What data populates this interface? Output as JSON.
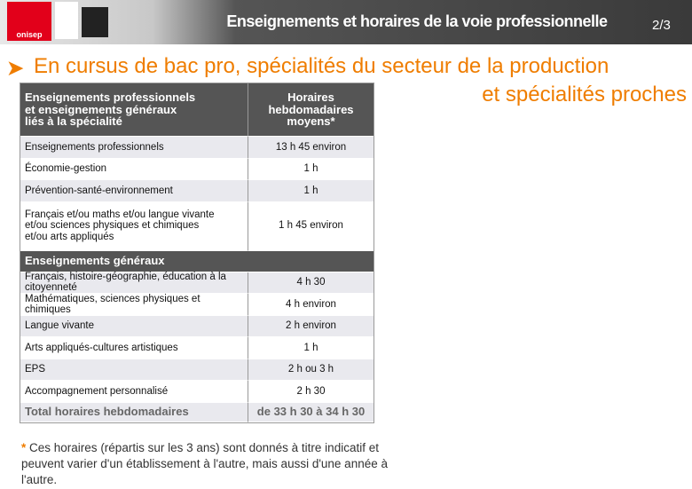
{
  "header": {
    "logo_text": "onisep",
    "title": "Enseignements et horaires de la voie professionnelle",
    "page": "2/3"
  },
  "subtitle": {
    "line1": "En cursus de bac pro, spécialités du secteur de la production",
    "line2": "et spécialités proches"
  },
  "table": {
    "header": [
      "Enseignements professionnels\net enseignements généraux\nliés à la spécialité",
      "Horaires\nhebdomadaires\nmoyens*"
    ],
    "rows": [
      [
        "Enseignements professionnels",
        "13 h 45 environ"
      ],
      [
        "Économie-gestion",
        "1 h"
      ],
      [
        "Prévention-santé-environnement",
        "1 h"
      ],
      [
        "Français et/ou maths et/ou langue vivante\net/ou sciences physiques et chimiques\net/ou arts appliqués",
        "1 h 45 environ"
      ]
    ],
    "section": "Enseignements généraux",
    "rows2": [
      [
        "Français, histoire-géographie, éducation à la citoyenneté",
        "4 h 30"
      ],
      [
        "Mathématiques, sciences physiques et chimiques",
        "4 h environ"
      ],
      [
        "Langue vivante",
        "2 h environ"
      ],
      [
        "Arts appliqués-cultures artistiques",
        "1 h"
      ],
      [
        "EPS",
        "2 h ou 3 h"
      ],
      [
        "Accompagnement personnalisé",
        "2 h 30"
      ]
    ],
    "total": [
      "Total horaires hebdomadaires",
      "de 33 h 30 à 34 h 30"
    ]
  },
  "footnote": {
    "marker": "*",
    "text": "Ces horaires (répartis sur les 3 ans) sont donnés à titre indicatif et peuvent varier d'un établissement à l'autre, mais aussi d'une année à l'autre."
  }
}
